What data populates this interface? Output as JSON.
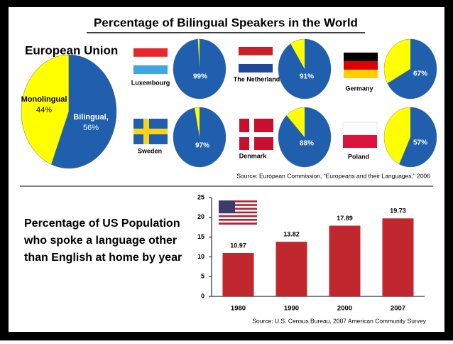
{
  "title": "Percentage of Bilingual Speakers in the World",
  "eu_source": "Source: European Commission, “Europeans and their Languages,” 2006",
  "chart_data": [
    {
      "type": "pie",
      "title": "European Union",
      "categories": [
        "Monolingual",
        "Bilingual,"
      ],
      "values": [
        44,
        56
      ],
      "value_labels": [
        "44%",
        "56%"
      ],
      "colors": [
        "#ffff00",
        "#1f5fad"
      ]
    },
    {
      "type": "pie",
      "title": "Luxembourg",
      "values": [
        99
      ],
      "value_labels": [
        "99%"
      ],
      "colors": [
        "#1f5fad"
      ],
      "rest_color": "#ffff00"
    },
    {
      "type": "pie",
      "title": "The Netherlands",
      "values": [
        91
      ],
      "value_labels": [
        "91%"
      ],
      "colors": [
        "#1f5fad"
      ],
      "rest_color": "#ffff00"
    },
    {
      "type": "pie",
      "title": "Germany",
      "values": [
        67
      ],
      "value_labels": [
        "67%"
      ],
      "colors": [
        "#1f5fad"
      ],
      "rest_color": "#ffff00"
    },
    {
      "type": "pie",
      "title": "Sweden",
      "values": [
        97
      ],
      "value_labels": [
        "97%"
      ],
      "colors": [
        "#1f5fad"
      ],
      "rest_color": "#ffff00"
    },
    {
      "type": "pie",
      "title": "Denmark",
      "values": [
        88
      ],
      "value_labels": [
        "88%"
      ],
      "colors": [
        "#1f5fad"
      ],
      "rest_color": "#ffff00"
    },
    {
      "type": "pie",
      "title": "Poland",
      "values": [
        57
      ],
      "value_labels": [
        "57%"
      ],
      "colors": [
        "#1f5fad"
      ],
      "rest_color": "#ffff00"
    },
    {
      "type": "bar",
      "title": [
        "Percentage of US Population",
        "who spoke a language other",
        "than English at home by year"
      ],
      "categories": [
        "1980",
        "1990",
        "2000",
        "2007"
      ],
      "values": [
        10.97,
        13.82,
        17.89,
        19.73
      ],
      "color": "#c0282d",
      "ylim": [
        0,
        25
      ],
      "yticks": [
        0,
        5,
        10,
        15,
        20,
        25
      ],
      "source": "Source: U.S. Census Bureau, 2007 American Community Survey"
    }
  ]
}
